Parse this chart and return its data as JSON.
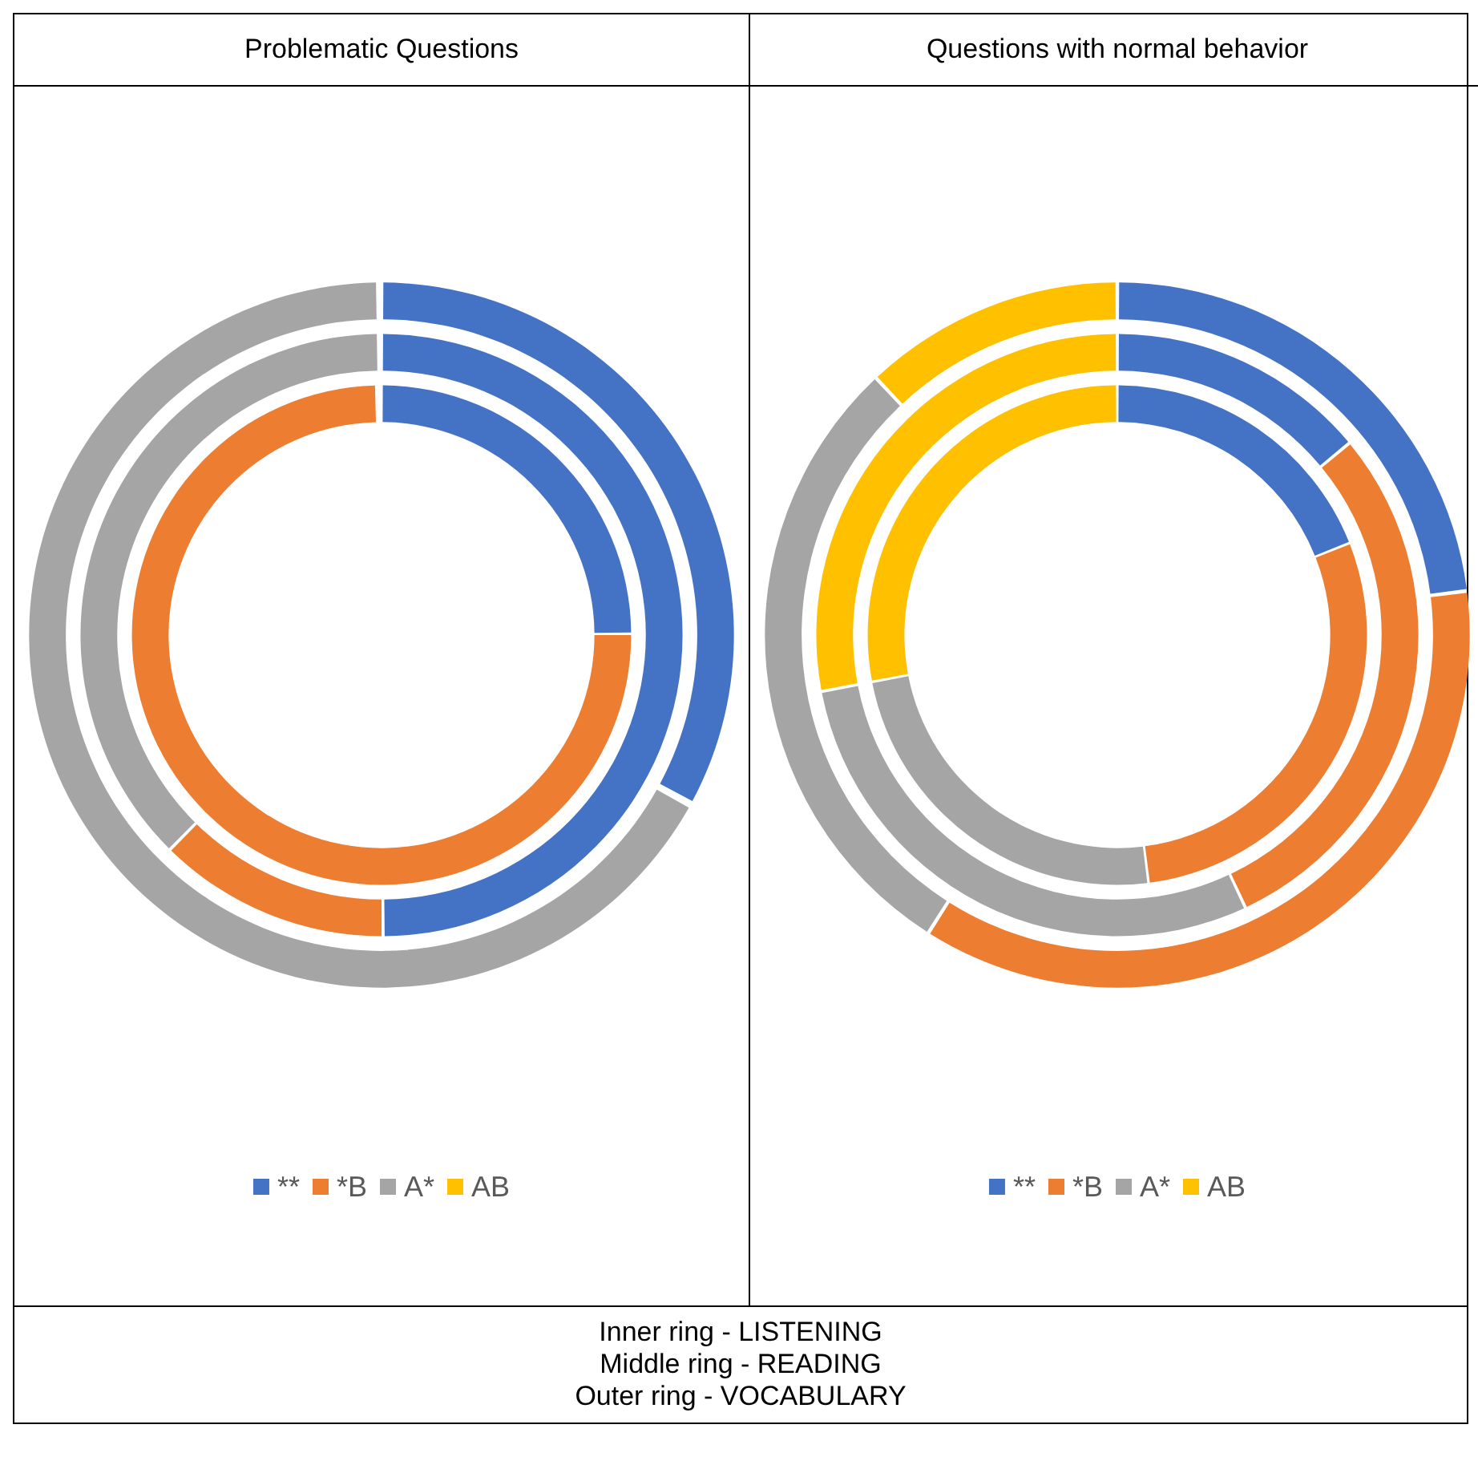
{
  "chart_data": [
    {
      "type": "donut",
      "title": "Problematic Questions",
      "categories": [
        "**",
        "*B",
        "A*",
        "AB"
      ],
      "colors": [
        "#4472c4",
        "#ed7d31",
        "#a5a5a5",
        "#ffc000"
      ],
      "legend": "bottom",
      "series": [
        {
          "values": [
            25,
            75,
            0,
            0
          ]
        },
        {
          "values": [
            50,
            12.5,
            37.5,
            0
          ]
        },
        {
          "values": [
            33,
            0,
            67,
            0
          ]
        }
      ]
    },
    {
      "type": "donut",
      "title": "Questions with normal behavior",
      "categories": [
        "**",
        "*B",
        "A*",
        "AB"
      ],
      "colors": [
        "#4472c4",
        "#ed7d31",
        "#a5a5a5",
        "#ffc000"
      ],
      "legend": "bottom",
      "series": [
        {
          "values": [
            19,
            29,
            24,
            28
          ]
        },
        {
          "values": [
            14,
            29,
            29,
            28
          ]
        },
        {
          "values": [
            23,
            36,
            29,
            12
          ]
        }
      ]
    },
    {
      "type": "other",
      "annotations": [
        "Inner ring - LISTENING",
        "Middle ring - READING",
        "Outer ring - VOCABULARY"
      ]
    }
  ]
}
